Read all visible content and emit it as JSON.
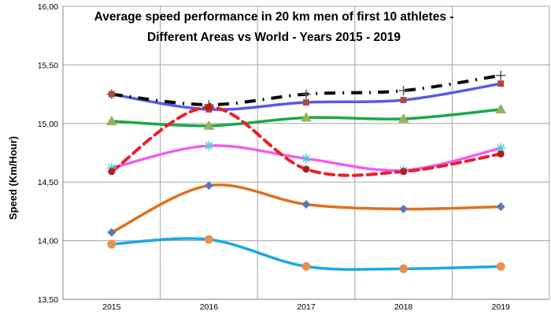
{
  "chart_data": {
    "type": "line",
    "title_lines": [
      "Average speed performance in 20 km men of first 10 athletes -",
      "Different Areas vs World - Years 2015 - 2019"
    ],
    "ylabel": "Speed (Km/Hour)",
    "xlabel": "",
    "categories": [
      "2015",
      "2016",
      "2017",
      "2018",
      "2019"
    ],
    "ylim": [
      13.5,
      16.0
    ],
    "yticks": [
      "13,50",
      "14,00",
      "14,50",
      "15,00",
      "15,50",
      "16,00"
    ],
    "ytick_values": [
      13.5,
      14.0,
      14.5,
      15.0,
      15.5,
      16.0
    ],
    "grid": "on",
    "legend": "none",
    "series": [
      {
        "values": [
          15.25,
          15.16,
          15.25,
          15.28,
          15.41
        ],
        "color": "#000000",
        "marker": "plus",
        "line_style": "dashdot"
      },
      {
        "values": [
          15.25,
          15.12,
          15.18,
          15.2,
          15.34
        ],
        "color": "#5a5ae6",
        "marker": "square",
        "line_style": "solid"
      },
      {
        "values": [
          15.02,
          14.98,
          15.05,
          15.04,
          15.12
        ],
        "color": "#1aa84a",
        "marker": "triangle",
        "line_style": "solid"
      },
      {
        "values": [
          14.62,
          14.81,
          14.7,
          14.6,
          14.79
        ],
        "color": "#f25cf2",
        "marker": "asterisk",
        "line_style": "solid"
      },
      {
        "values": [
          14.59,
          15.14,
          14.61,
          14.59,
          14.74
        ],
        "color": "#e8202a",
        "marker": "circle",
        "line_style": "dashed"
      },
      {
        "values": [
          14.07,
          14.47,
          14.31,
          14.27,
          14.29
        ],
        "color": "#e0701e",
        "marker": "diamond",
        "line_style": "solid"
      },
      {
        "values": [
          13.97,
          14.01,
          13.78,
          13.76,
          13.78
        ],
        "color": "#1aa8e6",
        "marker": "circle",
        "line_style": "solid"
      }
    ],
    "marker_colors": {
      "plus": "#555555",
      "square": "#b04848",
      "triangle": "#98b05a",
      "asterisk": "#55c8d2",
      "circle_red": "#b01e1e",
      "diamond": "#5878b8",
      "circle_orange": "#e89050"
    }
  }
}
